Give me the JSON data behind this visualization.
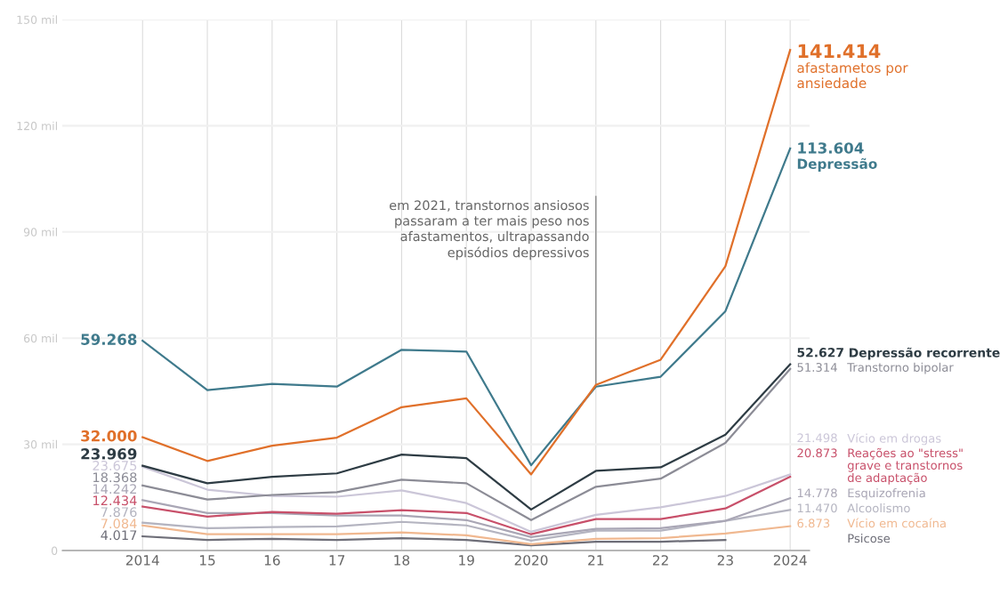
{
  "chart_data": {
    "type": "line",
    "categories": [
      "2014",
      "15",
      "16",
      "17",
      "18",
      "19",
      "2020",
      "21",
      "22",
      "23",
      "2024"
    ],
    "ylim": [
      0,
      150
    ],
    "yticks": [
      0,
      {
        "value": 30,
        "label": "30 mil"
      },
      {
        "value": 60,
        "label": "60 mil"
      },
      {
        "value": 90,
        "label": "90 mil"
      },
      {
        "value": 120,
        "label": "120 mil"
      },
      {
        "value": 150,
        "label": "150 mil"
      }
    ],
    "grid": true,
    "series": [
      {
        "name": "afastametos por\nansiedade",
        "color": "#e0702a",
        "values": [
          32.0,
          25.3,
          29.6,
          31.9,
          40.5,
          43.0,
          21.5,
          46.8,
          53.9,
          80.3,
          141.414
        ],
        "value_labels": [
          "32.000",
          null,
          null,
          null,
          null,
          null,
          null,
          null,
          null,
          null,
          "141.414"
        ]
      },
      {
        "name": "Depressão",
        "color": "#3f7a8c",
        "values": [
          59.268,
          45.3,
          47.1,
          46.3,
          56.7,
          56.2,
          24.1,
          46.3,
          49.1,
          67.6,
          113.604
        ],
        "value_labels": [
          "59.268",
          null,
          null,
          null,
          null,
          null,
          null,
          null,
          null,
          null,
          "113.604"
        ]
      },
      {
        "name": "Depressão recorrente",
        "color": "#2e3c44",
        "values": [
          23.969,
          19.0,
          20.8,
          21.8,
          27.1,
          26.1,
          11.6,
          22.5,
          23.5,
          32.7,
          52.627
        ],
        "value_labels": [
          "23.969",
          null,
          null,
          null,
          null,
          null,
          null,
          null,
          null,
          null,
          "52.627"
        ]
      },
      {
        "name": "Transtorno bipolar",
        "color": "#8c8c96",
        "values": [
          18.368,
          14.4,
          15.7,
          16.5,
          20.0,
          19.0,
          8.6,
          18.0,
          20.3,
          30.4,
          51.314
        ],
        "value_labels": [
          "18.368",
          null,
          null,
          null,
          null,
          null,
          null,
          null,
          null,
          null,
          "51.314"
        ]
      },
      {
        "name": "Vício em drogas",
        "color": "#cbc6d8",
        "values": [
          23.675,
          17.2,
          15.4,
          15.2,
          17.0,
          13.4,
          5.3,
          10.1,
          12.2,
          15.4,
          21.498
        ],
        "value_labels": [
          "23.675",
          null,
          null,
          null,
          null,
          null,
          null,
          null,
          null,
          null,
          "21.498"
        ]
      },
      {
        "name": "Reações ao \"stress\"\ngrave e transtornos\nde adaptação",
        "color": "#c8506a",
        "values": [
          12.434,
          9.6,
          10.9,
          10.4,
          11.4,
          10.6,
          4.6,
          8.9,
          8.9,
          11.9,
          20.873
        ],
        "value_labels": [
          "12.434",
          null,
          null,
          null,
          null,
          null,
          null,
          null,
          null,
          null,
          "20.873"
        ]
      },
      {
        "name": "Esquizofrenia",
        "color": "#a9a6b5",
        "values": [
          14.242,
          10.6,
          10.6,
          9.9,
          9.9,
          8.6,
          3.8,
          6.1,
          6.3,
          8.4,
          14.778
        ],
        "value_labels": [
          "14.242",
          null,
          null,
          null,
          null,
          null,
          null,
          null,
          null,
          null,
          "14.778"
        ]
      },
      {
        "name": "Alcoolismo",
        "color": "#b4b4c0",
        "values": [
          7.876,
          6.3,
          6.6,
          6.8,
          8.1,
          7.1,
          2.8,
          5.6,
          5.6,
          8.4,
          11.47
        ],
        "value_labels": [
          "7.876",
          null,
          null,
          null,
          null,
          null,
          null,
          null,
          null,
          null,
          "11.470"
        ]
      },
      {
        "name": "Vício em cocaína",
        "color": "#f0b890",
        "values": [
          7.084,
          4.6,
          4.6,
          4.6,
          5.1,
          4.3,
          1.8,
          3.3,
          3.5,
          4.8,
          6.873
        ],
        "value_labels": [
          "7.084",
          null,
          null,
          null,
          null,
          null,
          null,
          null,
          null,
          null,
          "6.873"
        ]
      },
      {
        "name": "Psicose",
        "color": "#6e6e78",
        "values": [
          4.017,
          3.0,
          3.3,
          3.0,
          3.5,
          3.0,
          1.5,
          2.5,
          2.5,
          3.0,
          null
        ],
        "value_labels": [
          "4.017",
          null,
          null,
          null,
          null,
          null,
          null,
          null,
          null,
          null,
          null
        ]
      }
    ],
    "annotations": [
      {
        "text": "em 2021, transtornos ansiosos\npassaram a ter mais peso nos\nafastamentos, ultrapassando\nepisódios depressivos",
        "x": "21",
        "y": 46.8
      }
    ]
  }
}
